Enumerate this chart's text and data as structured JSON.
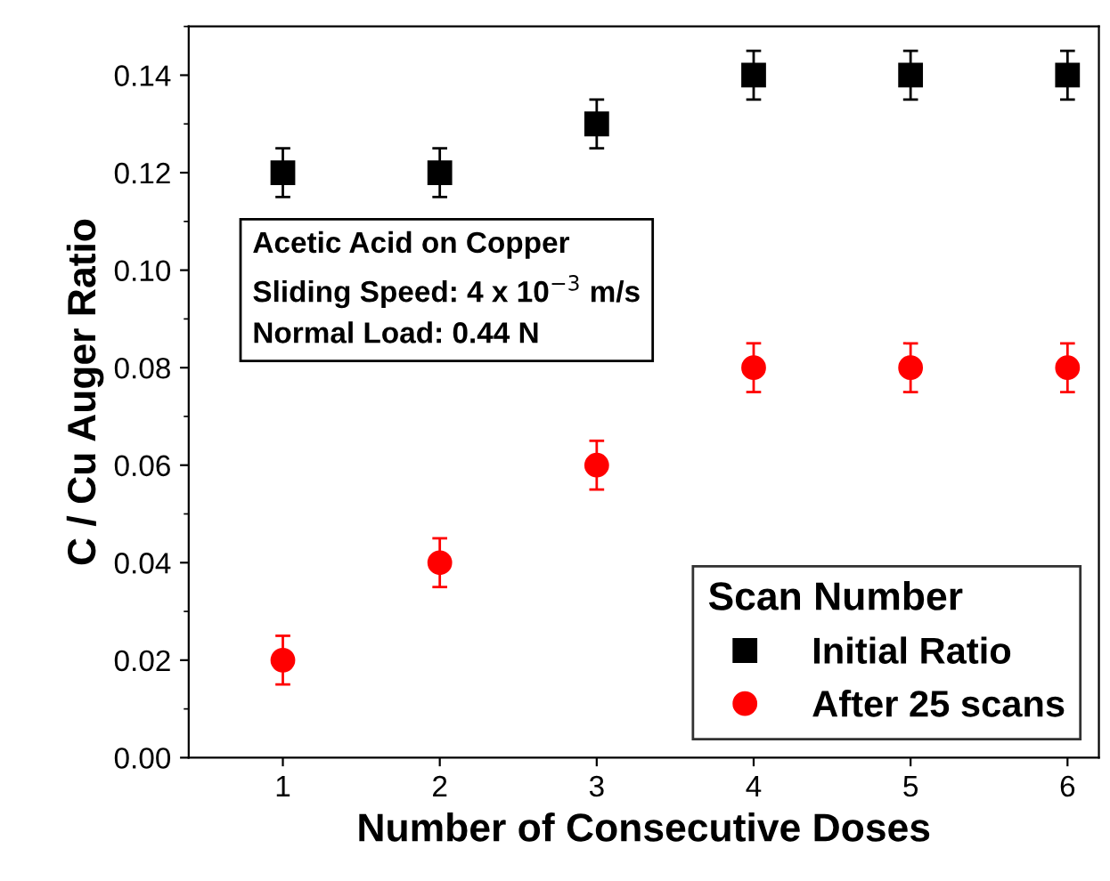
{
  "chart_data": {
    "type": "scatter",
    "xlabel": "Number of Consecutive Doses",
    "ylabel": "C / Cu Auger Ratio",
    "legend_title": "Scan Number",
    "x": [
      1,
      2,
      3,
      4,
      5,
      6
    ],
    "series": [
      {
        "name": "Initial Ratio",
        "color": "#000000",
        "marker": "square",
        "values": [
          0.12,
          0.12,
          0.13,
          0.14,
          0.14,
          0.14
        ],
        "errors": [
          0.005,
          0.005,
          0.005,
          0.005,
          0.005,
          0.005
        ]
      },
      {
        "name": "After 25 scans",
        "color": "#ff0000",
        "marker": "circle",
        "values": [
          0.02,
          0.04,
          0.06,
          0.08,
          0.08,
          0.08
        ],
        "errors": [
          0.005,
          0.005,
          0.005,
          0.005,
          0.005,
          0.005
        ]
      }
    ],
    "annotations": [
      "Acetic Acid on Copper\nSliding Speed: 4 x 10$^{−3}$ m/s\nNormal Load: 0.44 N"
    ],
    "xlim": [
      0.4,
      6.2
    ],
    "ylim": [
      0,
      0.15
    ],
    "xticks": [
      1,
      2,
      3,
      4,
      5,
      6
    ],
    "yticks": [
      {
        "value": 0,
        "label": "0.00"
      },
      0.02,
      0.04,
      0.06,
      0.08,
      {
        "value": 0.1,
        "label": "0.10"
      },
      0.12,
      0.14
    ],
    "grid": false,
    "legend": "bottom right"
  }
}
